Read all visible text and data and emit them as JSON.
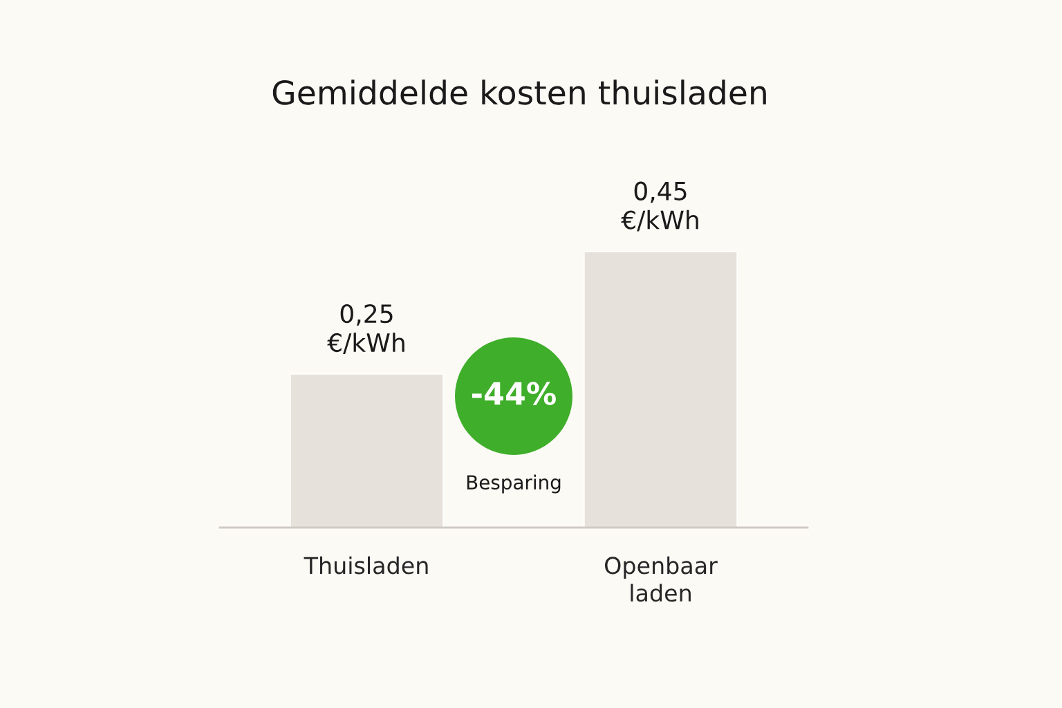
{
  "chart_data": {
    "type": "bar",
    "title": "Gemiddelde kosten thuisladen",
    "categories": [
      "Thuisladen",
      "Openbaar\nladen"
    ],
    "values": [
      0.25,
      0.45
    ],
    "value_labels": [
      "0,25\n€/kWh",
      "0,45\n€/kWh"
    ],
    "color": "#e6e1da",
    "annotations": [
      "-44%",
      "Besparing"
    ]
  }
}
